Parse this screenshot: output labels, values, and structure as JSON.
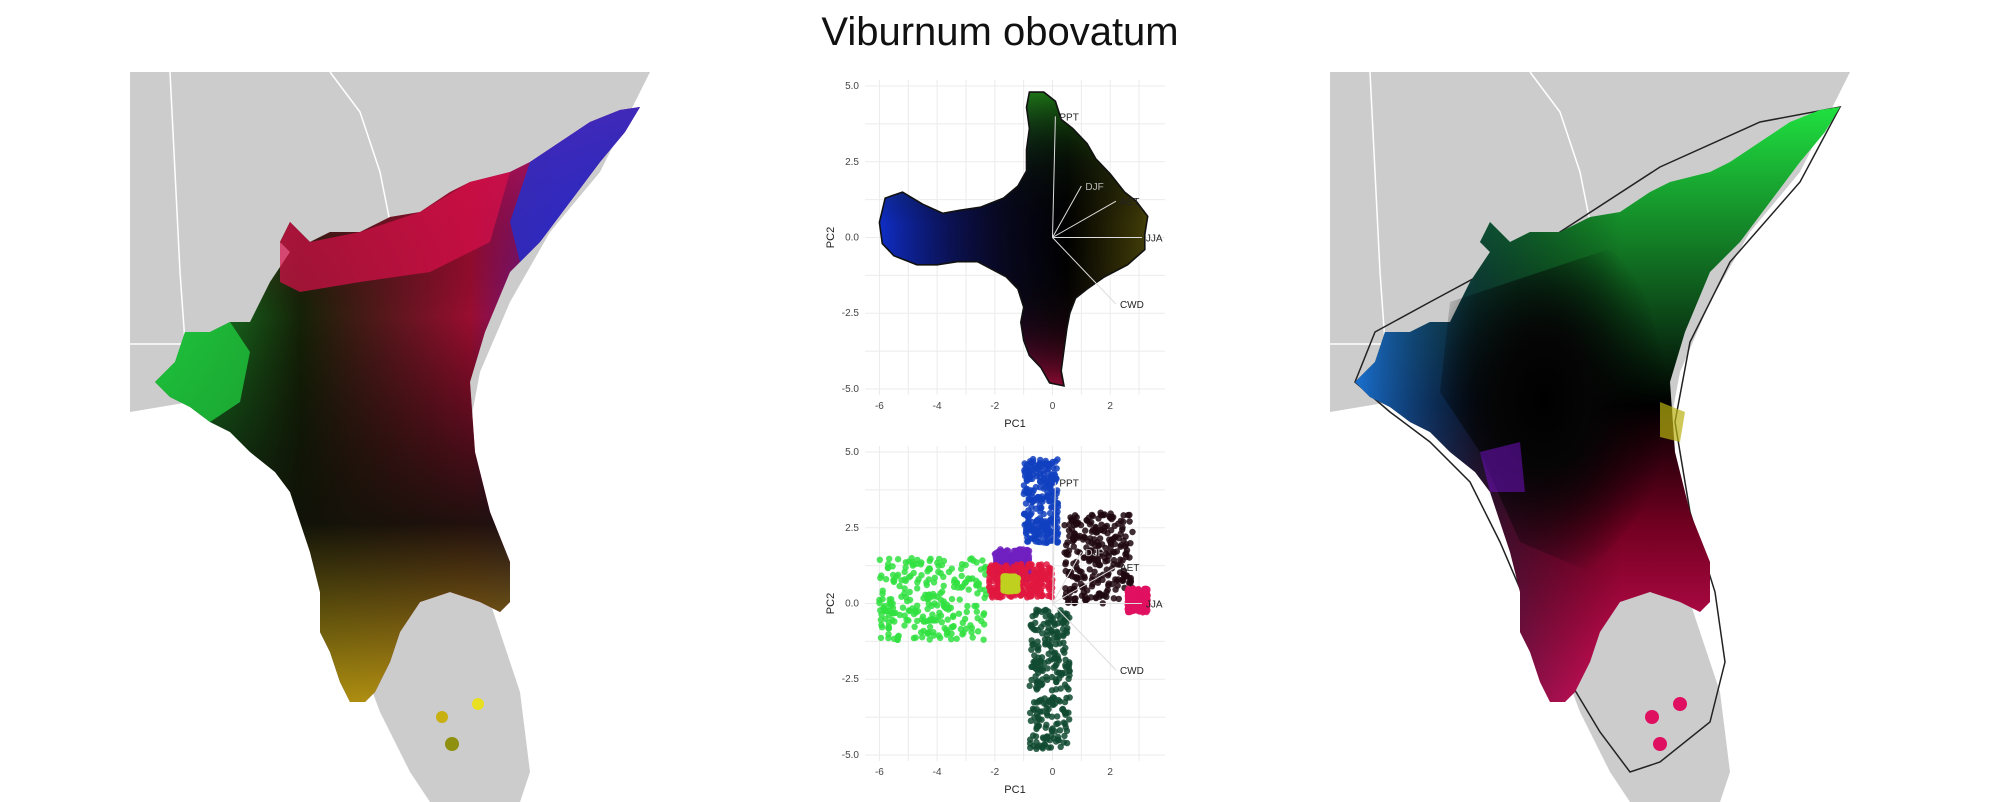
{
  "title": "Viburnum obovatum",
  "chart_data": [
    {
      "type": "map",
      "description_source": "left map: species range colored by climate PCA position",
      "title": "",
      "region_colors_left": [
        {
          "zone": "panhandle-west",
          "color": "#20d040"
        },
        {
          "zone": "north-central",
          "color": "#e0104a"
        },
        {
          "zone": "atlantic-coast-north",
          "color": "#2020d0"
        },
        {
          "zone": "atlantic-coast-central",
          "color": "#7020e0"
        },
        {
          "zone": "peninsula-core",
          "color": "#101008"
        },
        {
          "zone": "peninsula-south",
          "color": "#b89a10"
        },
        {
          "zone": "keys-points",
          "color": "#e0e020"
        }
      ]
    },
    {
      "type": "scatter",
      "title": "",
      "xlabel": "PC1",
      "ylabel": "PC2",
      "xlim": [
        -6.5,
        3.9
      ],
      "ylim": [
        -5.2,
        5.2
      ],
      "xticks": [
        -6,
        -4,
        -2,
        0,
        2
      ],
      "yticks": [
        "5.0",
        "2.5",
        "0.0",
        "-2.5",
        "-5.0"
      ],
      "grid": true,
      "loadings": [
        {
          "name": "PPT",
          "x": 0.1,
          "y": 4.0
        },
        {
          "name": "DJF",
          "x": 1.0,
          "y": 1.7
        },
        {
          "name": "AET",
          "x": 2.2,
          "y": 1.2
        },
        {
          "name": "JJA",
          "x": 3.1,
          "y": 0.0
        },
        {
          "name": "CWD",
          "x": 2.2,
          "y": -2.2
        }
      ],
      "outline": [
        [
          -5.8,
          1.3
        ],
        [
          -5.2,
          1.5
        ],
        [
          -4.5,
          1.1
        ],
        [
          -3.8,
          0.8
        ],
        [
          -3.2,
          0.9
        ],
        [
          -2.5,
          1.0
        ],
        [
          -1.7,
          1.3
        ],
        [
          -1.2,
          1.7
        ],
        [
          -0.9,
          2.2
        ],
        [
          -0.9,
          2.9
        ],
        [
          -0.8,
          3.6
        ],
        [
          -0.9,
          4.3
        ],
        [
          -0.8,
          4.8
        ],
        [
          -0.3,
          4.8
        ],
        [
          0.1,
          4.5
        ],
        [
          0.3,
          3.9
        ],
        [
          0.7,
          3.6
        ],
        [
          1.2,
          3.1
        ],
        [
          1.5,
          2.6
        ],
        [
          2.0,
          2.1
        ],
        [
          2.5,
          1.5
        ],
        [
          2.9,
          1.2
        ],
        [
          3.3,
          0.7
        ],
        [
          3.2,
          0.1
        ],
        [
          3.2,
          -0.4
        ],
        [
          2.6,
          -0.9
        ],
        [
          1.8,
          -1.3
        ],
        [
          1.2,
          -1.7
        ],
        [
          0.8,
          -2.0
        ],
        [
          0.6,
          -2.5
        ],
        [
          0.5,
          -3.0
        ],
        [
          0.4,
          -3.7
        ],
        [
          0.3,
          -4.4
        ],
        [
          0.4,
          -4.9
        ],
        [
          -0.1,
          -4.8
        ],
        [
          -0.4,
          -4.3
        ],
        [
          -0.8,
          -3.9
        ],
        [
          -1.0,
          -3.4
        ],
        [
          -1.1,
          -2.8
        ],
        [
          -1.0,
          -2.3
        ],
        [
          -1.2,
          -1.7
        ],
        [
          -1.6,
          -1.3
        ],
        [
          -2.0,
          -1.1
        ],
        [
          -2.6,
          -0.8
        ],
        [
          -3.3,
          -0.8
        ],
        [
          -4.0,
          -0.9
        ],
        [
          -4.7,
          -0.9
        ],
        [
          -5.5,
          -0.6
        ],
        [
          -5.9,
          -0.2
        ],
        [
          -6.0,
          0.5
        ]
      ],
      "colors": {
        "left": "#1030d0",
        "top": "#30c020",
        "right": "#d0c010",
        "bottom": "#e01050",
        "center": "#000000"
      }
    },
    {
      "type": "scatter",
      "title": "",
      "xlabel": "PC1",
      "ylabel": "PC2",
      "xlim": [
        -6.5,
        3.9
      ],
      "ylim": [
        -5.2,
        5.2
      ],
      "xticks": [
        -6,
        -4,
        -2,
        0,
        2
      ],
      "yticks": [
        "5.0",
        "2.5",
        "0.0",
        "-2.5",
        "-5.0"
      ],
      "grid": true,
      "loadings": [
        {
          "name": "PPT",
          "x": 0.1,
          "y": 4.0
        },
        {
          "name": "DJF",
          "x": 1.0,
          "y": 1.7
        },
        {
          "name": "AET",
          "x": 2.2,
          "y": 1.2
        },
        {
          "name": "JJA",
          "x": 3.1,
          "y": 0.0
        },
        {
          "name": "CWD",
          "x": 2.2,
          "y": -2.2
        }
      ],
      "point_groups": [
        {
          "color": "#30e040",
          "x": [
            -6.0,
            -2.2
          ],
          "y": [
            -1.2,
            1.5
          ]
        },
        {
          "color": "#1040c0",
          "x": [
            -1.0,
            0.2
          ],
          "y": [
            2.0,
            4.8
          ]
        },
        {
          "color": "#7020c0",
          "x": [
            -2.0,
            -0.8
          ],
          "y": [
            0.8,
            1.8
          ]
        },
        {
          "color": "#e01840",
          "x": [
            -2.2,
            0.0
          ],
          "y": [
            0.2,
            1.3
          ]
        },
        {
          "color": "#200810",
          "x": [
            0.4,
            2.8
          ],
          "y": [
            0.0,
            3.0
          ]
        },
        {
          "color": "#e01060",
          "x": [
            2.6,
            3.3
          ],
          "y": [
            -0.3,
            0.5
          ]
        },
        {
          "color": "#104a30",
          "x": [
            -0.8,
            0.6
          ],
          "y": [
            -4.8,
            -0.2
          ]
        },
        {
          "color": "#c0d020",
          "x": [
            -1.7,
            -1.2
          ],
          "y": [
            0.4,
            0.9
          ]
        }
      ]
    },
    {
      "type": "map",
      "title": "",
      "region_colors_right": [
        {
          "zone": "atlantic-coast",
          "color": "#20e040"
        },
        {
          "zone": "panhandle-west",
          "color": "#1a70d0"
        },
        {
          "zone": "gulf-mid",
          "color": "#7010c0"
        },
        {
          "zone": "center",
          "color": "#000000"
        },
        {
          "zone": "south",
          "color": "#e01060"
        },
        {
          "zone": "east-mid",
          "color": "#c8b810"
        }
      ]
    }
  ]
}
